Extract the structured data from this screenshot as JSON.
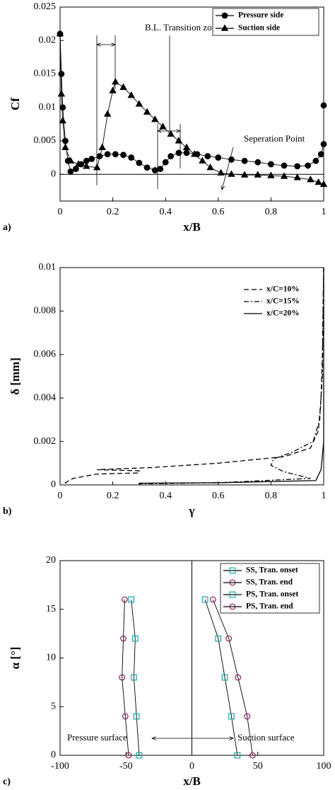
{
  "chart_data": [
    {
      "type": "line",
      "panel_label": "a)",
      "xlabel": "x/B",
      "ylabel": "Cf",
      "xlim": [
        0,
        1
      ],
      "xticks": [
        0,
        0.2,
        0.4,
        0.6,
        0.8,
        1
      ],
      "ylim": [
        -0.004,
        0.025
      ],
      "yticks": [
        0,
        0.005,
        0.01,
        0.015,
        0.02,
        0.025
      ],
      "zero_line": "horizontal",
      "legend": "upper right",
      "legend_box": true,
      "annotations": [
        "B.L. Transition zone",
        "Seperation Point"
      ],
      "series": [
        {
          "name": "Pressure side",
          "color": "#000000",
          "marker": "circle",
          "marker_fill": "#000000",
          "dash": "solid",
          "x": [
            0,
            0.005,
            0.01,
            0.02,
            0.03,
            0.04,
            0.06,
            0.08,
            0.1,
            0.12,
            0.15,
            0.18,
            0.21,
            0.24,
            0.27,
            0.3,
            0.33,
            0.36,
            0.38,
            0.4,
            0.42,
            0.45,
            0.48,
            0.52,
            0.56,
            0.6,
            0.65,
            0.7,
            0.75,
            0.8,
            0.85,
            0.9,
            0.94,
            0.97,
            0.99,
            1,
            1
          ],
          "values": [
            0.021,
            0.015,
            0.01,
            0.005,
            0.002,
            0.0004,
            0.0008,
            0.0015,
            0.002,
            0.0023,
            0.0027,
            0.003,
            0.003,
            0.0029,
            0.0025,
            0.0017,
            0.001,
            0.0006,
            0.0008,
            0.0018,
            0.0027,
            0.0032,
            0.0032,
            0.003,
            0.0027,
            0.0025,
            0.0022,
            0.002,
            0.0018,
            0.0015,
            0.0013,
            0.0012,
            0.0013,
            0.002,
            0.003,
            0.0045,
            0.0103
          ]
        },
        {
          "name": "Suction side",
          "color": "#000000",
          "marker": "triangle",
          "marker_fill": "#000000",
          "dash": "solid",
          "x": [
            0,
            0.005,
            0.01,
            0.02,
            0.04,
            0.07,
            0.1,
            0.14,
            0.16,
            0.18,
            0.2,
            0.21,
            0.24,
            0.27,
            0.3,
            0.33,
            0.36,
            0.39,
            0.42,
            0.45,
            0.48,
            0.51,
            0.54,
            0.57,
            0.61,
            0.65,
            0.7,
            0.75,
            0.8,
            0.85,
            0.9,
            0.95,
            0.98,
            1
          ],
          "values": [
            0.021,
            0.012,
            0.008,
            0.004,
            0.002,
            0.0015,
            0.0012,
            0.001,
            0.004,
            0.009,
            0.0125,
            0.0138,
            0.013,
            0.0118,
            0.0105,
            0.0093,
            0.0082,
            0.0071,
            0.006,
            0.005,
            0.004,
            0.003,
            0.002,
            0.001,
            0.0002,
            0,
            -0.0001,
            -0.0001,
            -0.0002,
            -0.0003,
            -0.0005,
            -0.0008,
            -0.0012,
            -0.0015
          ]
        }
      ]
    },
    {
      "type": "line",
      "panel_label": "b)",
      "xlabel": "γ",
      "ylabel": "δ [mm]",
      "xlim": [
        0,
        1
      ],
      "xticks": [
        0,
        0.2,
        0.4,
        0.6,
        0.8,
        1
      ],
      "ylim": [
        0,
        0.01
      ],
      "yticks": [
        0,
        0.002,
        0.004,
        0.006,
        0.008,
        0.01
      ],
      "legend": "upper right",
      "legend_box": false,
      "series": [
        {
          "name": "x/C=10%",
          "color": "#000000",
          "marker": "none",
          "dash": "dashed",
          "x": [
            1,
            0.995,
            0.99,
            0.98,
            0.95,
            0.85,
            0.6,
            0.35,
            0.14,
            0.3,
            0.3,
            0.14,
            0.05,
            0.02,
            0.03
          ],
          "values": [
            0.01,
            0.006,
            0.004,
            0.0025,
            0.0017,
            0.0013,
            0.001,
            0.0008,
            0.0007,
            0.00065,
            0.00055,
            0.0005,
            0.0003,
            0.0001,
            0
          ]
        },
        {
          "name": "x/C=15%",
          "color": "#000000",
          "marker": "none",
          "dash": "dashdot",
          "x": [
            1,
            0.995,
            0.985,
            0.96,
            0.88,
            0.81,
            0.8,
            0.85,
            0.95,
            0.6,
            0.3
          ],
          "values": [
            0.01,
            0.005,
            0.003,
            0.002,
            0.0015,
            0.0012,
            0.0009,
            0.0006,
            0.0003,
            0.0001,
            5e-05
          ]
        },
        {
          "name": "x/C=20%",
          "color": "#000000",
          "marker": "none",
          "dash": "solid",
          "x": [
            1,
            1,
            0.99,
            0.97,
            0.6,
            0.3,
            0.3
          ],
          "values": [
            0.01,
            0.002,
            0.0007,
            0.0002,
            0.0001,
            8e-05,
            0
          ]
        }
      ]
    },
    {
      "type": "line",
      "panel_label": "c)",
      "xlabel": "x/B",
      "ylabel": "α [°]",
      "xlim": [
        -100,
        100
      ],
      "xticks": [
        -100,
        -50,
        0,
        50,
        100
      ],
      "ylim": [
        0,
        20
      ],
      "yticks": [
        0,
        5,
        10,
        15,
        20
      ],
      "zero_line": "vertical",
      "legend": "upper right",
      "legend_box": true,
      "annotations": [
        "Pressure surface",
        "Suction surface"
      ],
      "series": [
        {
          "name": "SS, Tran. onset",
          "color": "#000000",
          "marker": "square",
          "marker_fill": "#1aa6a6",
          "dash": "solid",
          "x": [
            34.5,
            30,
            25,
            20,
            10
          ],
          "values": [
            0,
            4,
            8,
            12,
            16
          ]
        },
        {
          "name": "SS, Tran. end",
          "color": "#000000",
          "marker": "circle",
          "marker_fill": "#8b1a5a",
          "dash": "solid",
          "x": [
            46,
            42,
            35,
            28,
            16
          ],
          "values": [
            0,
            4,
            8,
            12,
            16
          ]
        },
        {
          "name": "PS, Tran. onset",
          "color": "#000000",
          "marker": "square",
          "marker_fill": "#1aa6a6",
          "dash": "solid",
          "x": [
            -40,
            -42,
            -44,
            -43,
            -46
          ],
          "values": [
            0,
            4,
            8,
            12,
            16
          ]
        },
        {
          "name": "PS, Tran. end",
          "color": "#000000",
          "marker": "circle",
          "marker_fill": "#8b1a5a",
          "dash": "solid",
          "x": [
            -48,
            -50.5,
            -53,
            -52,
            -51
          ],
          "values": [
            0,
            4,
            8,
            12,
            16
          ]
        }
      ]
    }
  ]
}
